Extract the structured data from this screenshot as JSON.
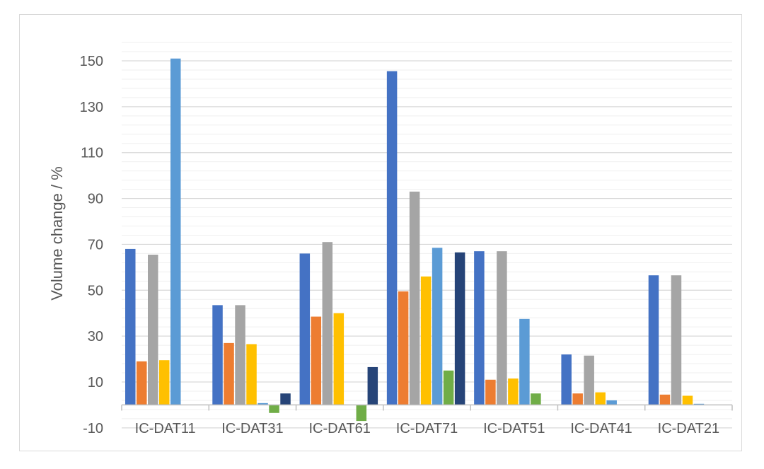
{
  "chart_data": {
    "type": "bar",
    "title": "",
    "xlabel": "",
    "ylabel": "Volume change  / %",
    "ylim": [
      -10,
      160
    ],
    "yticks": [
      -10,
      10,
      30,
      50,
      70,
      90,
      110,
      130,
      150
    ],
    "minor_step": 4,
    "grid": true,
    "legend": "none",
    "categories": [
      "IC-DAT11",
      "IC-DAT31",
      "IC-DAT61",
      "IC-DAT71",
      "IC-DAT51",
      "IC-DAT41",
      "IC-DAT21"
    ],
    "series": [
      {
        "color": "#4472C4",
        "values": [
          68,
          43.5,
          66,
          145.5,
          67,
          22,
          56.5
        ]
      },
      {
        "color": "#ED7D31",
        "values": [
          19,
          27,
          38.5,
          49.5,
          11,
          5,
          4.5
        ]
      },
      {
        "color": "#A5A5A5",
        "values": [
          65.5,
          43.5,
          71,
          93,
          67,
          21.5,
          56.5
        ]
      },
      {
        "color": "#FFC000",
        "values": [
          19.5,
          26.5,
          40,
          56,
          11.5,
          5.5,
          4
        ]
      },
      {
        "color": "#5B9BD5",
        "values": [
          151,
          0.8,
          0,
          68.5,
          37.5,
          2,
          0.5
        ]
      },
      {
        "color": "#70AD47",
        "values": [
          0,
          -3.5,
          -7,
          15,
          5,
          0,
          0
        ]
      },
      {
        "color": "#264478",
        "values": [
          0,
          5,
          16.5,
          66.5,
          0,
          0,
          0
        ]
      }
    ]
  }
}
